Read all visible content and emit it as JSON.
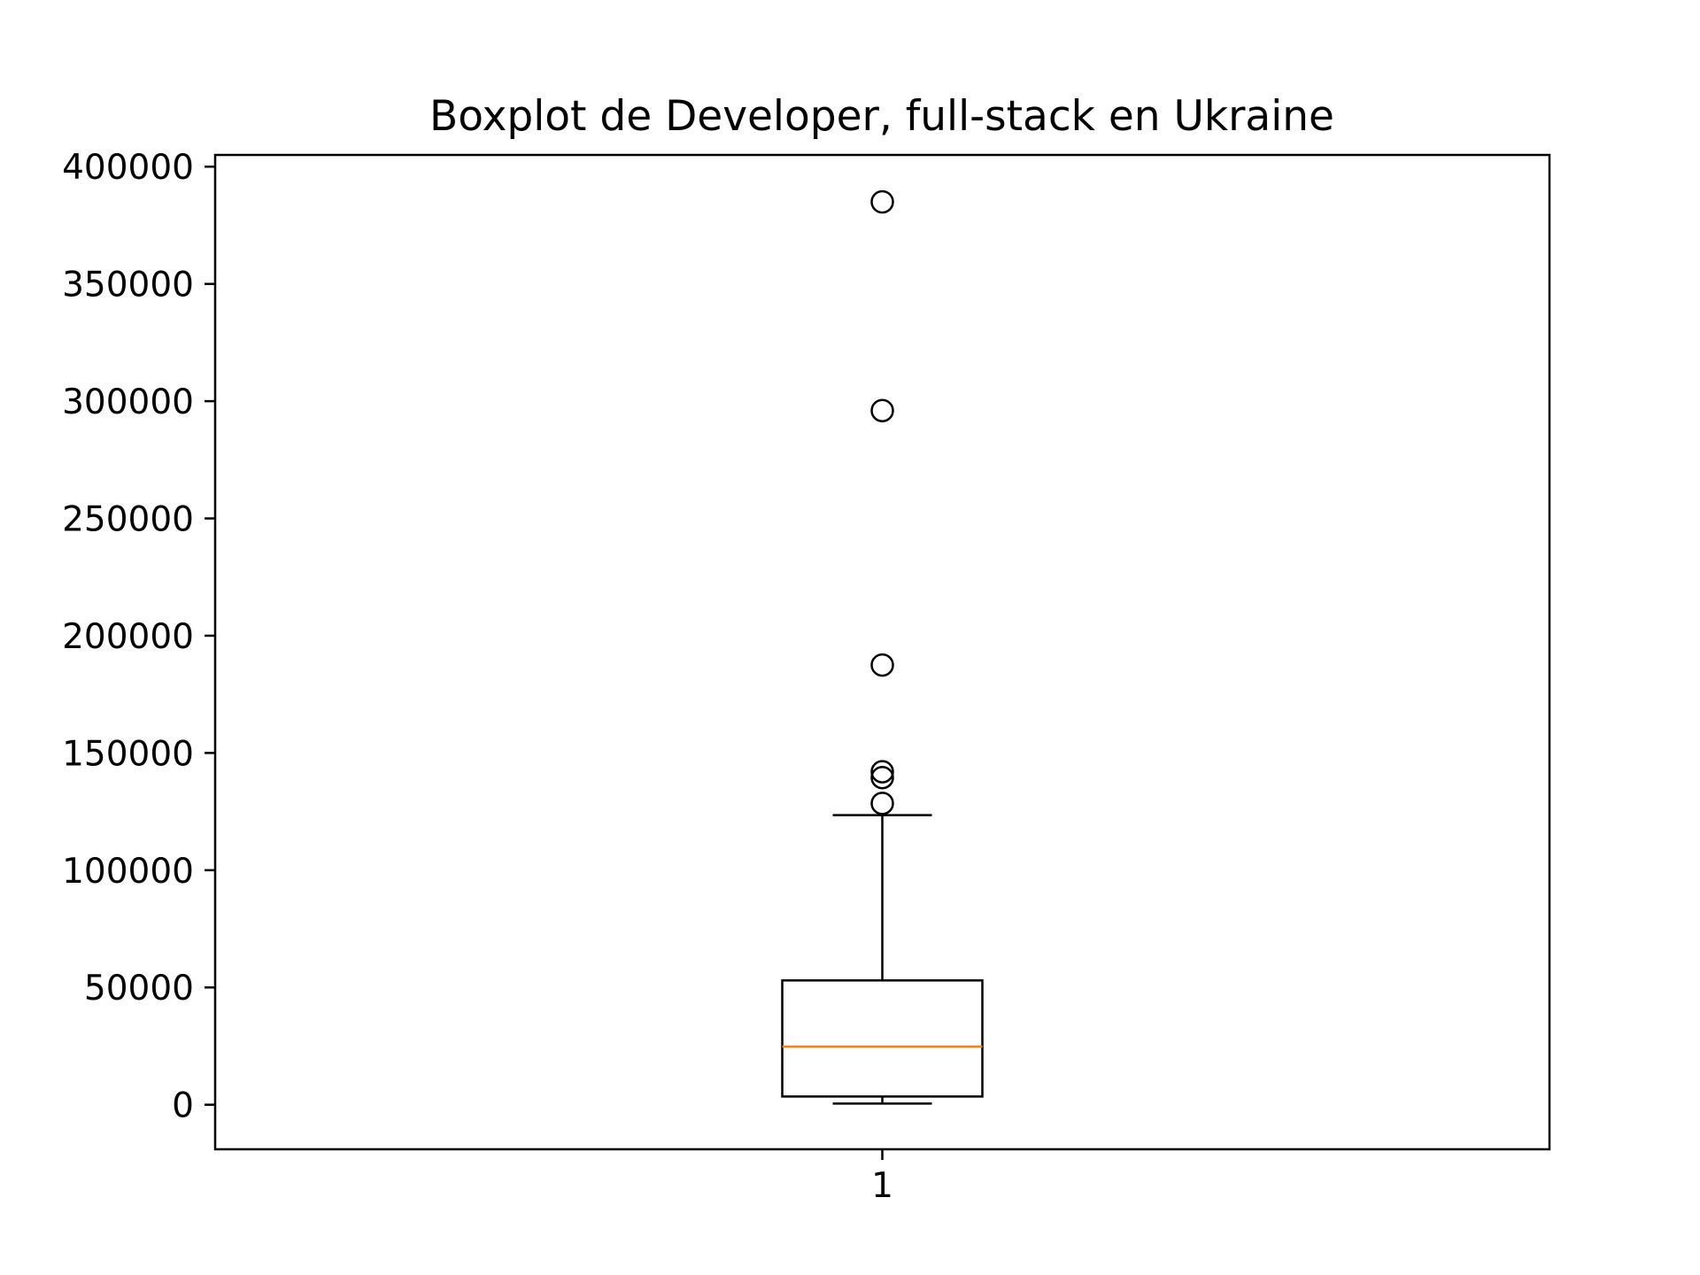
{
  "chart_data": {
    "type": "boxplot",
    "title": "Boxplot de Developer, full-stack en Ukraine",
    "xlabel": "",
    "ylabel": "",
    "categories": [
      "1"
    ],
    "yticks": [
      0,
      50000,
      100000,
      150000,
      200000,
      250000,
      300000,
      350000,
      400000
    ],
    "ytick_labels": [
      "0",
      "50000",
      "100000",
      "150000",
      "200000",
      "250000",
      "300000",
      "350000",
      "400000"
    ],
    "ylim": [
      -19000,
      405000
    ],
    "grid": false,
    "boxes": [
      {
        "category": "1",
        "whisker_low": 500,
        "q1": 3500,
        "median": 24800,
        "q3": 53000,
        "whisker_high": 123500,
        "outliers": [
          128500,
          139500,
          142000,
          187500,
          296000,
          385000
        ]
      }
    ],
    "colors": {
      "box": "#000000",
      "median": "#ff7f0e",
      "outlier": "#000000"
    }
  }
}
